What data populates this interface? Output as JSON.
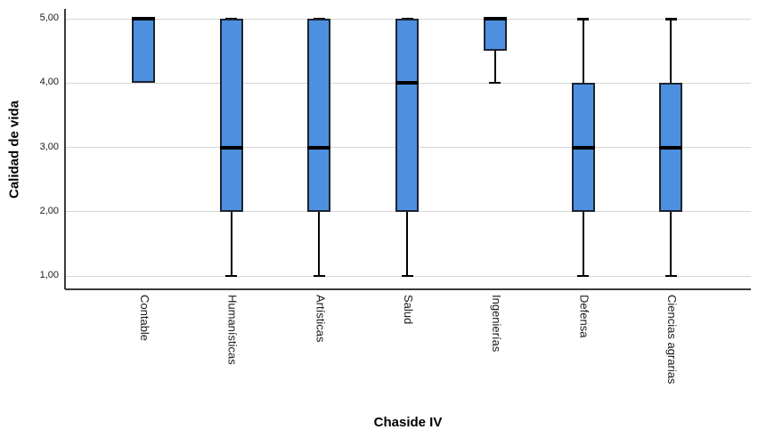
{
  "chart_data": {
    "type": "boxplot",
    "title": "",
    "xlabel": "Chaside IV",
    "ylabel": "Calidad de vida",
    "ylim": [
      1,
      5
    ],
    "yticks": [
      1,
      2,
      3,
      4,
      5
    ],
    "ytick_labels": [
      "1,00",
      "2,00",
      "3,00",
      "4,00",
      "5,00"
    ],
    "grid": "horizontal",
    "legend": "none",
    "categories": [
      "Contable",
      "Humanísticas",
      "Artísticas",
      "Salud",
      "Ingenierías",
      "Defensa",
      "Ciencias agrarias"
    ],
    "series": [
      {
        "label": "Contable",
        "whisker_low": 4,
        "q1": 4,
        "median": 5,
        "q3": 5,
        "whisker_high": 5
      },
      {
        "label": "Humanísticas",
        "whisker_low": 1,
        "q1": 2,
        "median": 3,
        "q3": 5,
        "whisker_high": 5
      },
      {
        "label": "Artísticas",
        "whisker_low": 1,
        "q1": 2,
        "median": 3,
        "q3": 5,
        "whisker_high": 5
      },
      {
        "label": "Salud",
        "whisker_low": 1,
        "q1": 2,
        "median": 4,
        "q3": 5,
        "whisker_high": 5
      },
      {
        "label": "Ingenierías",
        "whisker_low": 4,
        "q1": 4.5,
        "median": 5,
        "q3": 5,
        "whisker_high": 5
      },
      {
        "label": "Defensa",
        "whisker_low": 1,
        "q1": 2,
        "median": 3,
        "q3": 4,
        "whisker_high": 5
      },
      {
        "label": "Ciencias agrarias",
        "whisker_low": 1,
        "q1": 2,
        "median": 3,
        "q3": 4,
        "whisker_high": 5
      }
    ],
    "colors": {
      "box_fill": "#4D90E0",
      "box_border": "#1c2430",
      "median": "#000000",
      "whisker": "#000000",
      "gridline": "#d6d6d6",
      "axis": "#3a3a3a",
      "background": "#ffffff"
    }
  }
}
